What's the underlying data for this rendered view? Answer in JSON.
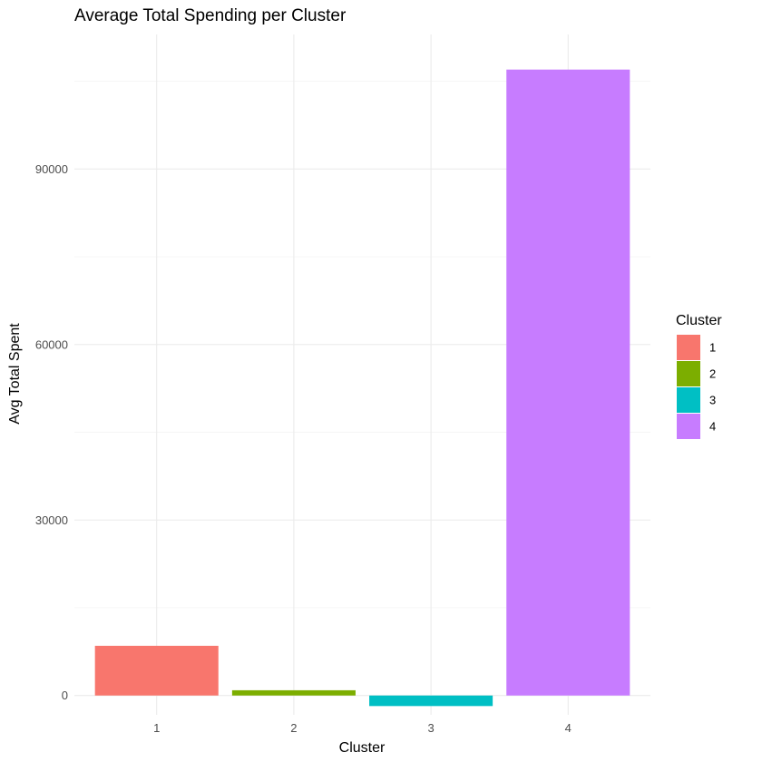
{
  "chart_data": {
    "type": "bar",
    "title": "Average Total Spending per Cluster",
    "xlabel": "Cluster",
    "ylabel": "Avg Total Spent",
    "categories": [
      "1",
      "2",
      "3",
      "4"
    ],
    "values": [
      8500,
      900,
      -1800,
      107000
    ],
    "colors": [
      "#F8766D",
      "#7CAE00",
      "#00BFC4",
      "#C77CFF"
    ],
    "y_ticks": [
      0,
      30000,
      60000,
      90000
    ],
    "y_tick_labels": [
      "0",
      "30000",
      "60000",
      "90000"
    ],
    "ylim": [
      -3300,
      113000
    ],
    "grid": true,
    "legend": {
      "title": "Cluster",
      "position": "right",
      "entries": [
        "1",
        "2",
        "3",
        "4"
      ]
    }
  }
}
